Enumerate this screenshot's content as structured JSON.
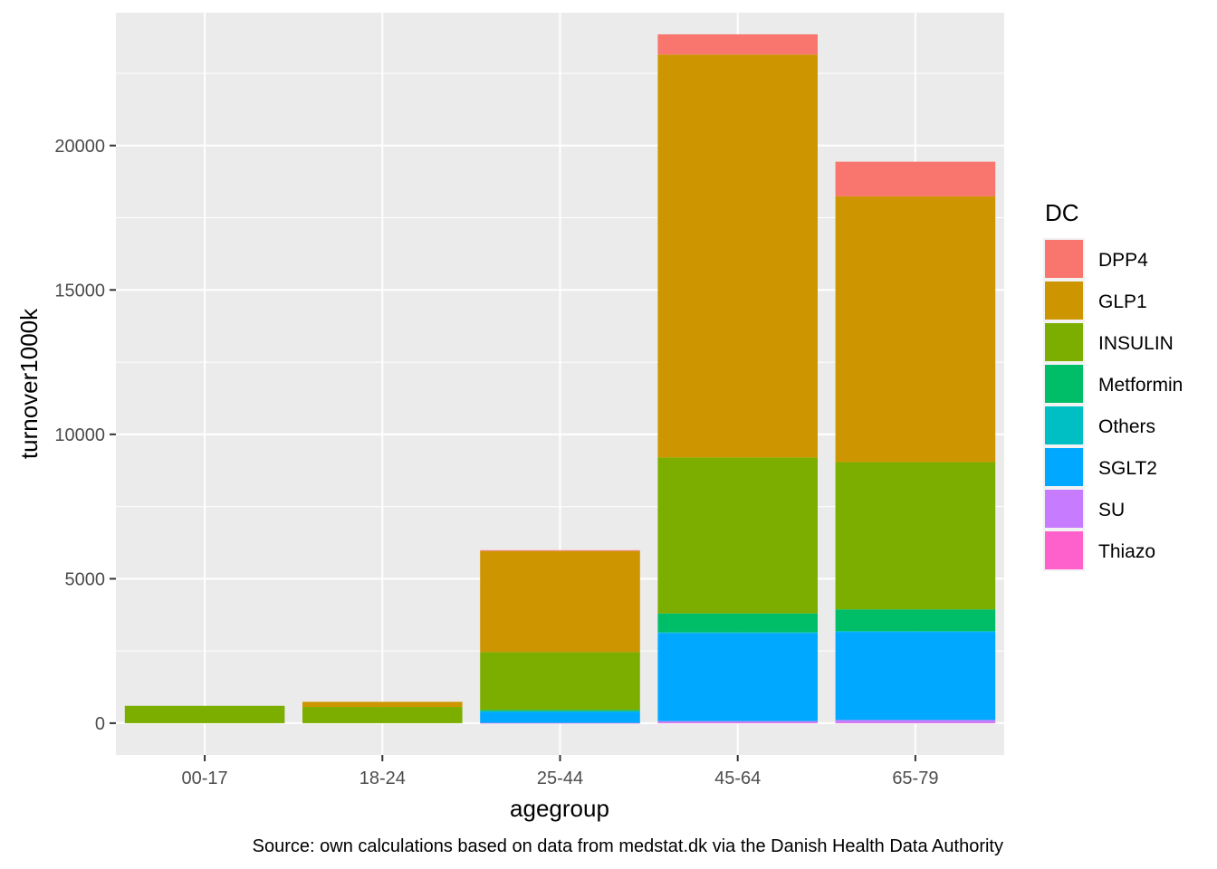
{
  "chart_data": {
    "type": "bar",
    "stacked": true,
    "xlabel": "agegroup",
    "ylabel": "turnover1000k",
    "caption": "Source: own calculations based on data from medstat.dk via the Danish Health Data Authority",
    "ylim": [
      -1100,
      24600
    ],
    "yticks": [
      0,
      5000,
      10000,
      15000,
      20000
    ],
    "yticks_labels": [
      "0",
      "5000",
      "10000",
      "15000",
      "20000"
    ],
    "categories": [
      "00-17",
      "18-24",
      "25-44",
      "45-64",
      "65-79"
    ],
    "legend": {
      "title": "DC",
      "position": "right"
    },
    "grid": true,
    "series": [
      {
        "name": "DPP4",
        "color": "#F8766D",
        "values": [
          0,
          0,
          30,
          700,
          1200
        ]
      },
      {
        "name": "GLP1",
        "color": "#CD9600",
        "values": [
          0,
          180,
          3500,
          13950,
          9200
        ]
      },
      {
        "name": "INSULIN",
        "color": "#7CAE00",
        "values": [
          600,
          560,
          2000,
          5400,
          5100
        ]
      },
      {
        "name": "Metformin",
        "color": "#00BE67",
        "values": [
          0,
          0,
          50,
          650,
          750
        ]
      },
      {
        "name": "Others",
        "color": "#00BFC4",
        "values": [
          0,
          0,
          10,
          30,
          30
        ]
      },
      {
        "name": "SGLT2",
        "color": "#00A9FF",
        "values": [
          0,
          0,
          390,
          3050,
          3050
        ]
      },
      {
        "name": "SU",
        "color": "#C77CFF",
        "values": [
          0,
          0,
          5,
          60,
          100
        ]
      },
      {
        "name": "Thiazo",
        "color": "#FF61CC",
        "values": [
          0,
          0,
          5,
          10,
          10
        ]
      }
    ]
  }
}
